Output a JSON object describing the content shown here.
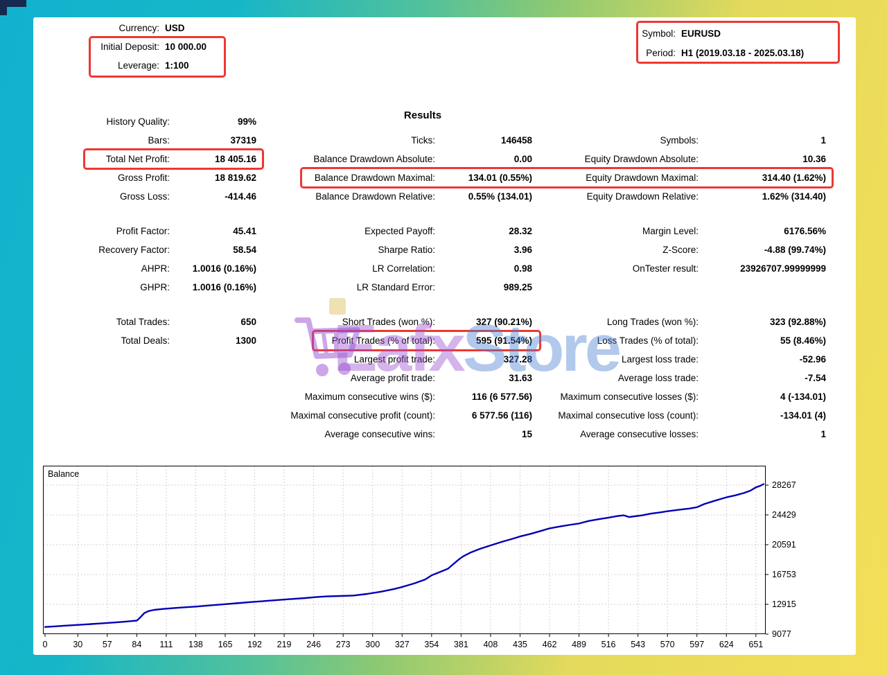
{
  "header": {
    "left": {
      "rows": [
        {
          "label": "Currency:",
          "value": "USD"
        },
        {
          "label": "Initial Deposit:",
          "value": "10 000.00"
        },
        {
          "label": "Leverage:",
          "value": "1:100"
        }
      ]
    },
    "right": {
      "rows": [
        {
          "label": "Symbol:",
          "value": "EURUSD"
        },
        {
          "label": "Period:",
          "value": "H1 (2019.03.18 - 2025.03.18)"
        }
      ]
    }
  },
  "results_title": "Results",
  "stats": {
    "blocks": [
      {
        "rows": [
          {
            "cells": [
              {
                "label": "History Quality:",
                "value": "99%"
              },
              null,
              null
            ]
          },
          {
            "cells": [
              {
                "label": "Bars:",
                "value": "37319"
              },
              {
                "label": "Ticks:",
                "value": "146458"
              },
              {
                "label": "Symbols:",
                "value": "1"
              }
            ]
          },
          {
            "cells": [
              {
                "label": "Total Net Profit:",
                "value": "18 405.16"
              },
              {
                "label": "Balance Drawdown Absolute:",
                "value": "0.00"
              },
              {
                "label": "Equity Drawdown Absolute:",
                "value": "10.36"
              }
            ],
            "highlight": "col1"
          },
          {
            "cells": [
              {
                "label": "Gross Profit:",
                "value": "18 819.62"
              },
              {
                "label": "Balance Drawdown Maximal:",
                "value": "134.01 (0.55%)"
              },
              {
                "label": "Equity Drawdown Maximal:",
                "value": "314.40 (1.62%)"
              }
            ],
            "highlight": "col2to3"
          },
          {
            "cells": [
              {
                "label": "Gross Loss:",
                "value": "-414.46"
              },
              {
                "label": "Balance Drawdown Relative:",
                "value": "0.55% (134.01)"
              },
              {
                "label": "Equity Drawdown Relative:",
                "value": "1.62% (314.40)"
              }
            ]
          }
        ]
      },
      {
        "rows": [
          {
            "cells": [
              {
                "label": "Profit Factor:",
                "value": "45.41"
              },
              {
                "label": "Expected Payoff:",
                "value": "28.32"
              },
              {
                "label": "Margin Level:",
                "value": "6176.56%"
              }
            ]
          },
          {
            "cells": [
              {
                "label": "Recovery Factor:",
                "value": "58.54"
              },
              {
                "label": "Sharpe Ratio:",
                "value": "3.96"
              },
              {
                "label": "Z-Score:",
                "value": "-4.88 (99.74%)"
              }
            ]
          },
          {
            "cells": [
              {
                "label": "AHPR:",
                "value": "1.0016 (0.16%)"
              },
              {
                "label": "LR Correlation:",
                "value": "0.98"
              },
              {
                "label": "OnTester result:",
                "value": "23926707.99999999"
              }
            ]
          },
          {
            "cells": [
              {
                "label": "GHPR:",
                "value": "1.0016 (0.16%)"
              },
              {
                "label": "LR Standard Error:",
                "value": "989.25"
              },
              null
            ]
          }
        ]
      },
      {
        "rows": [
          {
            "cells": [
              {
                "label": "Total Trades:",
                "value": "650"
              },
              {
                "label": "Short Trades (won %):",
                "value": "327 (90.21%)"
              },
              {
                "label": "Long Trades (won %):",
                "value": "323 (92.88%)"
              }
            ]
          },
          {
            "cells": [
              {
                "label": "Total Deals:",
                "value": "1300"
              },
              {
                "label": "Profit Trades (% of total):",
                "value": "595 (91.54%)"
              },
              {
                "label": "Loss Trades (% of total):",
                "value": "55 (8.46%)"
              }
            ],
            "highlight": "col2"
          },
          {
            "cells": [
              null,
              {
                "label": "Largest profit trade:",
                "value": "327.28"
              },
              {
                "label": "Largest loss trade:",
                "value": "-52.96"
              }
            ]
          },
          {
            "cells": [
              null,
              {
                "label": "Average profit trade:",
                "value": "31.63"
              },
              {
                "label": "Average loss trade:",
                "value": "-7.54"
              }
            ]
          },
          {
            "cells": [
              null,
              {
                "label": "Maximum consecutive wins ($):",
                "value": "116 (6 577.56)"
              },
              {
                "label": "Maximum consecutive losses ($):",
                "value": "4 (-134.01)"
              }
            ]
          },
          {
            "cells": [
              null,
              {
                "label": "Maximal consecutive profit (count):",
                "value": "6 577.56 (116)"
              },
              {
                "label": "Maximal consecutive loss (count):",
                "value": "-134.01 (4)"
              }
            ]
          },
          {
            "cells": [
              null,
              {
                "label": "Average consecutive wins:",
                "value": "15"
              },
              {
                "label": "Average consecutive losses:",
                "value": "1"
              }
            ]
          }
        ]
      }
    ]
  },
  "watermark": {
    "text_left": "Eafx",
    "text_right": "Store",
    "icon": "shopping-cart-icon"
  },
  "colors": {
    "highlight_red": "#ee3733",
    "balance_line": "#0000b4",
    "watermark_purple": "#9a4fd0",
    "watermark_blue": "#4a7fd4"
  },
  "chart_data": {
    "type": "line",
    "title": "Balance",
    "xlabel": "",
    "ylabel": "",
    "grid": "dotted",
    "legend_position": "none",
    "xlim": [
      0,
      660
    ],
    "ylim": [
      9077,
      30767
    ],
    "x_ticks": [
      0,
      30,
      57,
      84,
      111,
      138,
      165,
      192,
      219,
      246,
      273,
      300,
      327,
      354,
      381,
      408,
      435,
      462,
      489,
      516,
      543,
      570,
      597,
      624,
      651
    ],
    "y_ticks": [
      9077,
      12915,
      16753,
      20591,
      24429,
      28267
    ],
    "series": [
      {
        "name": "Balance",
        "color": "#0000b4",
        "points": [
          [
            0,
            10000
          ],
          [
            8,
            10070
          ],
          [
            16,
            10140
          ],
          [
            25,
            10220
          ],
          [
            33,
            10290
          ],
          [
            42,
            10370
          ],
          [
            50,
            10440
          ],
          [
            58,
            10520
          ],
          [
            66,
            10600
          ],
          [
            74,
            10690
          ],
          [
            80,
            10760
          ],
          [
            84,
            10820
          ],
          [
            87,
            11200
          ],
          [
            91,
            11800
          ],
          [
            95,
            12050
          ],
          [
            100,
            12200
          ],
          [
            108,
            12320
          ],
          [
            118,
            12430
          ],
          [
            128,
            12530
          ],
          [
            138,
            12620
          ],
          [
            150,
            12760
          ],
          [
            162,
            12900
          ],
          [
            175,
            13050
          ],
          [
            188,
            13200
          ],
          [
            200,
            13330
          ],
          [
            212,
            13460
          ],
          [
            225,
            13590
          ],
          [
            238,
            13720
          ],
          [
            248,
            13840
          ],
          [
            258,
            13930
          ],
          [
            270,
            13990
          ],
          [
            282,
            14040
          ],
          [
            295,
            14250
          ],
          [
            308,
            14550
          ],
          [
            320,
            14900
          ],
          [
            327,
            15150
          ],
          [
            338,
            15600
          ],
          [
            348,
            16100
          ],
          [
            354,
            16650
          ],
          [
            362,
            17100
          ],
          [
            369,
            17500
          ],
          [
            374,
            18100
          ],
          [
            379,
            18700
          ],
          [
            383,
            19100
          ],
          [
            390,
            19600
          ],
          [
            398,
            20050
          ],
          [
            408,
            20500
          ],
          [
            418,
            20950
          ],
          [
            428,
            21350
          ],
          [
            435,
            21650
          ],
          [
            445,
            22000
          ],
          [
            455,
            22400
          ],
          [
            462,
            22700
          ],
          [
            472,
            22950
          ],
          [
            482,
            23180
          ],
          [
            489,
            23320
          ],
          [
            498,
            23650
          ],
          [
            508,
            23900
          ],
          [
            516,
            24080
          ],
          [
            524,
            24280
          ],
          [
            530,
            24380
          ],
          [
            535,
            24150
          ],
          [
            540,
            24250
          ],
          [
            547,
            24380
          ],
          [
            555,
            24600
          ],
          [
            563,
            24750
          ],
          [
            570,
            24900
          ],
          [
            580,
            25080
          ],
          [
            590,
            25250
          ],
          [
            597,
            25420
          ],
          [
            604,
            25850
          ],
          [
            612,
            26200
          ],
          [
            618,
            26450
          ],
          [
            624,
            26700
          ],
          [
            632,
            26950
          ],
          [
            640,
            27250
          ],
          [
            646,
            27550
          ],
          [
            651,
            27980
          ],
          [
            655,
            28180
          ],
          [
            658,
            28405
          ]
        ]
      }
    ]
  }
}
